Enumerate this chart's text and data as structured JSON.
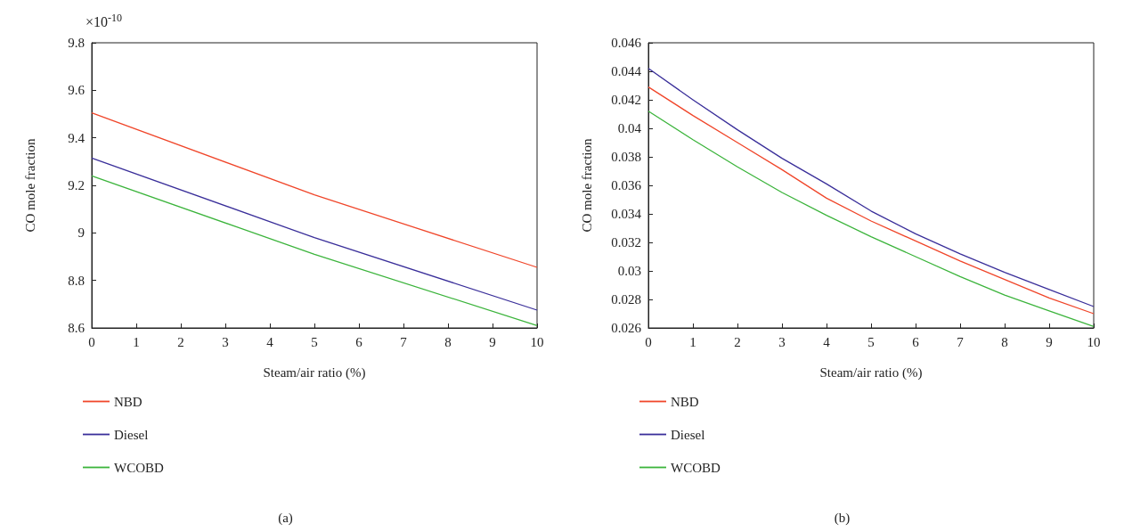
{
  "chart_data": [
    {
      "type": "line",
      "xlabel": "Steam/air ratio (%)",
      "ylabel": "CO mole fraction",
      "annotations": [
        "×10$^{-10}$",
        "(a)"
      ],
      "x": [
        0,
        5,
        10
      ],
      "series": [
        {
          "name": "NBD",
          "color": "#f0462a",
          "values": [
            9.505,
            9.16,
            8.855
          ]
        },
        {
          "name": "Diesel",
          "color": "#3a2f9a",
          "values": [
            9.315,
            8.98,
            8.675
          ]
        },
        {
          "name": "WCOBD",
          "color": "#3cb43c",
          "values": [
            9.24,
            8.91,
            8.61
          ]
        }
      ],
      "xlim": [
        0,
        10
      ],
      "xticks": [
        0,
        1,
        2,
        3,
        4,
        5,
        6,
        7,
        8,
        9,
        10
      ],
      "ylim": [
        8.6,
        9.8
      ],
      "yticks": [
        8.6,
        8.8,
        9,
        9.2,
        9.4,
        9.6,
        9.8
      ],
      "grid": false,
      "legend": "bottom",
      "marker": "none",
      "line_style": "solid"
    },
    {
      "type": "line",
      "xlabel": "Steam/air ratio (%)",
      "ylabel": "CO mole fraction",
      "annotations": [
        "(b)"
      ],
      "x": [
        0,
        1,
        2,
        3,
        4,
        5,
        6,
        7,
        8,
        9,
        10
      ],
      "series": [
        {
          "name": "NBD",
          "color": "#f0462a",
          "values": [
            0.0429,
            0.0409,
            0.039,
            0.0371,
            0.0351,
            0.0335,
            0.0321,
            0.0307,
            0.0294,
            0.0281,
            0.027
          ]
        },
        {
          "name": "Diesel",
          "color": "#3a2f9a",
          "values": [
            0.0442,
            0.042,
            0.0399,
            0.0379,
            0.0361,
            0.0342,
            0.0326,
            0.0312,
            0.0299,
            0.0287,
            0.0275
          ]
        },
        {
          "name": "WCOBD",
          "color": "#3cb43c",
          "values": [
            0.0412,
            0.0392,
            0.0373,
            0.0355,
            0.0339,
            0.0324,
            0.031,
            0.0296,
            0.0283,
            0.0272,
            0.0261
          ]
        }
      ],
      "xlim": [
        0,
        10
      ],
      "xticks": [
        0,
        1,
        2,
        3,
        4,
        5,
        6,
        7,
        8,
        9,
        10
      ],
      "ylim": [
        0.026,
        0.046
      ],
      "yticks": [
        0.026,
        0.028,
        0.03,
        0.032,
        0.034,
        0.036,
        0.038,
        0.04,
        0.042,
        0.044,
        0.046
      ],
      "grid": false,
      "legend": "bottom",
      "marker": "none",
      "line_style": "solid"
    }
  ]
}
